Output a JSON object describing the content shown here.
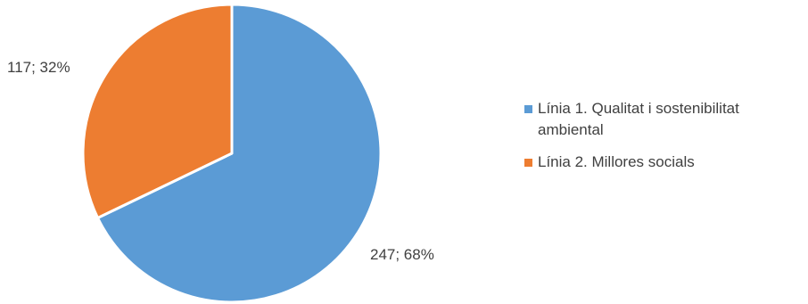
{
  "chart_data": {
    "type": "pie",
    "title": "",
    "slices": [
      {
        "label": "Línia 1. Qualitat i sostenibilitat ambiental",
        "value": 247,
        "percent": 68,
        "data_label": "247; 68%",
        "color": "#5B9BD5"
      },
      {
        "label": "Línia 2. Millores socials",
        "value": 117,
        "percent": 32,
        "data_label": "117; 32%",
        "color": "#ED7D31"
      }
    ],
    "legend_placement": "right"
  }
}
